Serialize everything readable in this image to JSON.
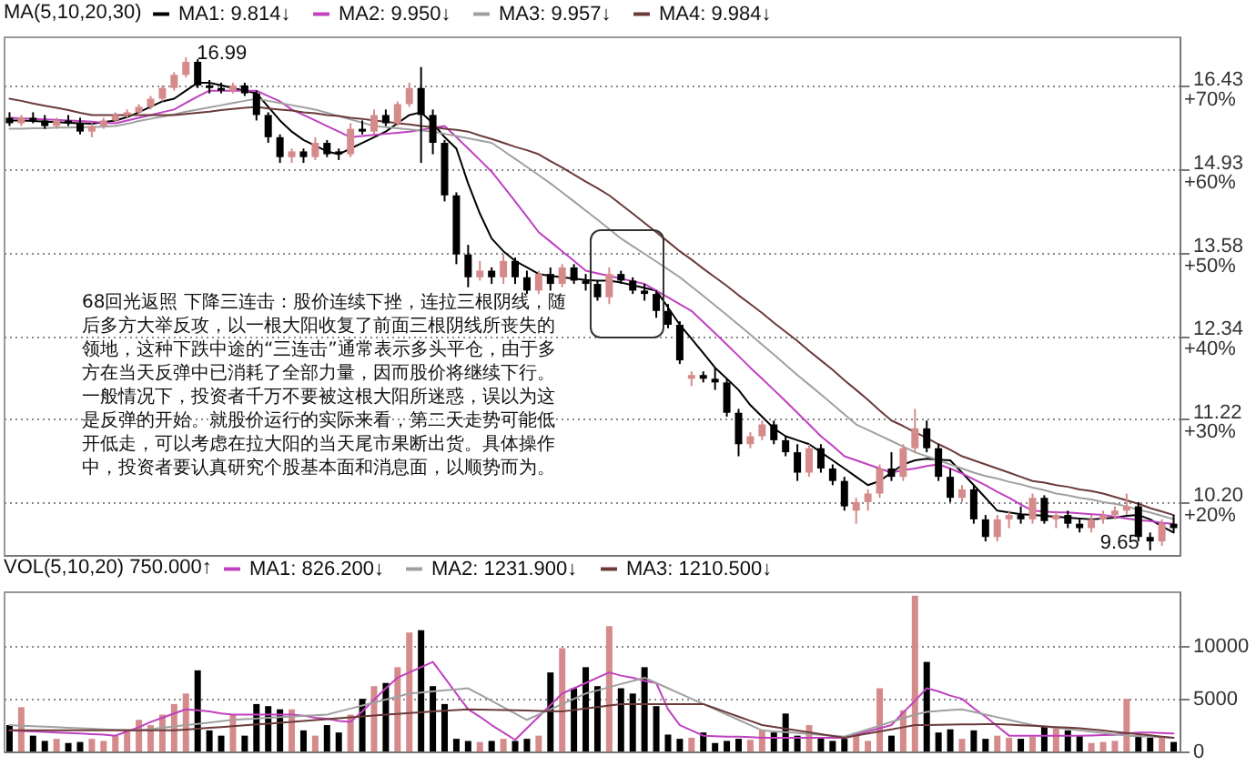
{
  "chart_data": [
    {
      "type": "candlestick",
      "legend_title": "MA(5,10,20,30)",
      "legend": "top left",
      "log": true,
      "grid": "y",
      "tick_labels": "y",
      "ylim": [
        9.6,
        17.4
      ],
      "yticks": [
        16.43,
        14.93,
        13.58,
        12.34,
        11.22,
        {
          "value": 10.2,
          "label": "10.20"
        }
      ],
      "y2lim": [
        13.6,
        76
      ],
      "y2ticks": [
        {
          "value": 70,
          "label": "+70%"
        },
        {
          "value": 60,
          "label": "+60%"
        },
        {
          "value": 50,
          "label": "+50%"
        },
        {
          "value": 40,
          "label": "+40%"
        },
        {
          "value": 30,
          "label": "+30%"
        },
        {
          "value": 20,
          "label": "+20%"
        }
      ],
      "categories": [
        null,
        null,
        null,
        null,
        null,
        null,
        null,
        null,
        null,
        null,
        null,
        null,
        null,
        null,
        null,
        null,
        null,
        null,
        null,
        null,
        null,
        null,
        null,
        null,
        null,
        null,
        null,
        null,
        null,
        null,
        null,
        null,
        null,
        null,
        null,
        null,
        null,
        null,
        null,
        null,
        null,
        null,
        null,
        null,
        null,
        null,
        null,
        null,
        null,
        null,
        null,
        null,
        null,
        null,
        null,
        null,
        null,
        null,
        null,
        null,
        null,
        null,
        null,
        null,
        null,
        null,
        null,
        null,
        null,
        null,
        null,
        null,
        null,
        null,
        null,
        null,
        null,
        null,
        null,
        null,
        null,
        null,
        null,
        null,
        null,
        null,
        null,
        null,
        null,
        null,
        null,
        null,
        null,
        null,
        null,
        null,
        null,
        null,
        null,
        null
      ],
      "ohlc": [
        [
          15.85,
          15.95,
          15.7,
          15.75
        ],
        [
          15.75,
          15.9,
          15.7,
          15.85
        ],
        [
          15.85,
          15.95,
          15.75,
          15.8
        ],
        [
          15.8,
          15.9,
          15.65,
          15.7
        ],
        [
          15.7,
          15.85,
          15.65,
          15.8
        ],
        [
          15.8,
          15.9,
          15.7,
          15.75
        ],
        [
          15.75,
          15.85,
          15.55,
          15.6
        ],
        [
          15.6,
          15.75,
          15.5,
          15.7
        ],
        [
          15.7,
          15.85,
          15.65,
          15.8
        ],
        [
          15.8,
          15.95,
          15.75,
          15.9
        ],
        [
          15.9,
          16.0,
          15.85,
          15.95
        ],
        [
          15.95,
          16.1,
          15.9,
          16.05
        ],
        [
          16.05,
          16.25,
          16.0,
          16.2
        ],
        [
          16.2,
          16.45,
          16.15,
          16.4
        ],
        [
          16.4,
          16.7,
          16.35,
          16.65
        ],
        [
          16.65,
          16.99,
          16.6,
          16.9
        ],
        [
          16.9,
          16.95,
          16.4,
          16.45
        ],
        [
          16.45,
          16.55,
          16.3,
          16.4
        ],
        [
          16.4,
          16.5,
          16.3,
          16.35
        ],
        [
          16.35,
          16.5,
          16.3,
          16.45
        ],
        [
          16.45,
          16.5,
          16.25,
          16.3
        ],
        [
          16.3,
          16.35,
          15.8,
          15.9
        ],
        [
          15.9,
          15.95,
          15.4,
          15.5
        ],
        [
          15.5,
          15.55,
          15.05,
          15.15
        ],
        [
          15.15,
          15.3,
          15.05,
          15.25
        ],
        [
          15.25,
          15.3,
          15.05,
          15.15
        ],
        [
          15.15,
          15.5,
          15.1,
          15.4
        ],
        [
          15.4,
          15.45,
          15.15,
          15.2
        ],
        [
          15.25,
          15.3,
          15.1,
          15.2
        ],
        [
          15.2,
          15.75,
          15.15,
          15.65
        ],
        [
          15.65,
          15.8,
          15.55,
          15.6
        ],
        [
          15.6,
          16.0,
          15.55,
          15.9
        ],
        [
          15.9,
          16.0,
          15.7,
          15.75
        ],
        [
          15.75,
          16.15,
          15.7,
          16.1
        ],
        [
          16.1,
          16.5,
          16.05,
          16.4
        ],
        [
          16.4,
          16.8,
          15.05,
          15.9
        ],
        [
          15.9,
          16.0,
          15.2,
          15.4
        ],
        [
          15.4,
          15.45,
          14.4,
          14.5
        ],
        [
          14.5,
          14.55,
          13.4,
          13.55
        ],
        [
          13.55,
          13.7,
          13.05,
          13.2
        ],
        [
          13.2,
          13.45,
          13.15,
          13.3
        ],
        [
          13.3,
          13.35,
          13.1,
          13.2
        ],
        [
          13.2,
          13.55,
          13.1,
          13.45
        ],
        [
          13.45,
          13.5,
          13.1,
          13.2
        ],
        [
          13.2,
          13.3,
          12.95,
          13.0
        ],
        [
          13.0,
          13.3,
          12.95,
          13.25
        ],
        [
          13.25,
          13.35,
          13.0,
          13.1
        ],
        [
          13.1,
          13.4,
          13.05,
          13.35
        ],
        [
          13.35,
          13.4,
          13.1,
          13.15
        ],
        [
          13.15,
          13.25,
          13.0,
          13.1
        ],
        [
          13.1,
          13.15,
          12.85,
          12.9
        ],
        [
          12.9,
          13.35,
          12.8,
          13.25
        ],
        [
          13.25,
          13.3,
          13.1,
          13.15
        ],
        [
          13.15,
          13.2,
          12.95,
          13.0
        ],
        [
          13.0,
          13.1,
          12.85,
          12.95
        ],
        [
          12.95,
          13.0,
          12.6,
          12.7
        ],
        [
          12.7,
          12.8,
          12.45,
          12.5
        ],
        [
          12.5,
          12.55,
          11.95,
          12.0
        ],
        [
          11.75,
          11.85,
          11.65,
          11.8
        ],
        [
          11.8,
          11.85,
          11.7,
          11.75
        ],
        [
          11.75,
          11.9,
          11.6,
          11.7
        ],
        [
          11.7,
          11.75,
          11.25,
          11.3
        ],
        [
          11.3,
          11.35,
          10.75,
          10.9
        ],
        [
          10.9,
          11.05,
          10.85,
          11.0
        ],
        [
          11.0,
          11.2,
          10.95,
          11.15
        ],
        [
          11.15,
          11.2,
          10.9,
          10.95
        ],
        [
          10.95,
          11.0,
          10.75,
          10.8
        ],
        [
          10.8,
          10.9,
          10.45,
          10.55
        ],
        [
          10.55,
          10.9,
          10.5,
          10.85
        ],
        [
          10.85,
          10.9,
          10.55,
          10.6
        ],
        [
          10.6,
          10.65,
          10.4,
          10.45
        ],
        [
          10.45,
          10.5,
          10.1,
          10.15
        ],
        [
          10.1,
          10.25,
          9.95,
          10.2
        ],
        [
          10.2,
          10.35,
          10.1,
          10.3
        ],
        [
          10.3,
          10.65,
          10.25,
          10.6
        ],
        [
          10.6,
          10.8,
          10.45,
          10.5
        ],
        [
          10.5,
          10.9,
          10.45,
          10.85
        ],
        [
          10.85,
          11.35,
          10.8,
          11.1
        ],
        [
          11.1,
          11.2,
          10.8,
          10.85
        ],
        [
          10.85,
          10.9,
          10.45,
          10.5
        ],
        [
          10.5,
          10.6,
          10.2,
          10.25
        ],
        [
          10.25,
          10.4,
          10.2,
          10.35
        ],
        [
          10.35,
          10.4,
          9.95,
          10.0
        ],
        [
          10.0,
          10.05,
          9.75,
          9.8
        ],
        [
          9.8,
          10.05,
          9.75,
          10.0
        ],
        [
          10.0,
          10.1,
          9.9,
          10.05
        ],
        [
          10.05,
          10.15,
          9.95,
          10.0
        ],
        [
          10.0,
          10.3,
          9.95,
          10.25
        ],
        [
          10.25,
          10.28,
          9.95,
          9.98
        ],
        [
          10.0,
          10.1,
          9.9,
          10.05
        ],
        [
          10.05,
          10.1,
          9.9,
          9.95
        ],
        [
          9.95,
          10.0,
          9.85,
          9.9
        ],
        [
          9.9,
          10.05,
          9.85,
          10.0
        ],
        [
          10.0,
          10.1,
          9.95,
          10.05
        ],
        [
          10.05,
          10.15,
          10.0,
          10.1
        ],
        [
          10.1,
          10.3,
          10.05,
          10.15
        ],
        [
          10.15,
          10.2,
          9.75,
          9.8
        ],
        [
          9.8,
          9.85,
          9.65,
          9.75
        ],
        [
          9.75,
          10.0,
          9.7,
          9.95
        ],
        [
          9.95,
          10.05,
          9.85,
          9.9
        ]
      ],
      "colors": [
        "#000000",
        "#d58b8b",
        "#000000",
        "#000000",
        "#d58b8b",
        "#000000",
        "#000000",
        "#d58b8b",
        "#d58b8b",
        "#d58b8b",
        "#d58b8b",
        "#d58b8b",
        "#d58b8b",
        "#d58b8b",
        "#d58b8b",
        "#d58b8b",
        "#000000",
        "#000000",
        "#000000",
        "#d58b8b",
        "#000000",
        "#000000",
        "#000000",
        "#000000",
        "#d58b8b",
        "#000000",
        "#d58b8b",
        "#000000",
        "#000000",
        "#d58b8b",
        "#000000",
        "#d58b8b",
        "#000000",
        "#d58b8b",
        "#d58b8b",
        "#000000",
        "#000000",
        "#000000",
        "#000000",
        "#000000",
        "#d58b8b",
        "#000000",
        "#d58b8b",
        "#000000",
        "#000000",
        "#d58b8b",
        "#000000",
        "#d58b8b",
        "#000000",
        "#000000",
        "#000000",
        "#d58b8b",
        "#000000",
        "#000000",
        "#000000",
        "#000000",
        "#000000",
        "#000000",
        "#d58b8b",
        "#000000",
        "#000000",
        "#000000",
        "#000000",
        "#d58b8b",
        "#d58b8b",
        "#000000",
        "#000000",
        "#000000",
        "#d58b8b",
        "#000000",
        "#000000",
        "#000000",
        "#d58b8b",
        "#d58b8b",
        "#d58b8b",
        "#000000",
        "#d58b8b",
        "#d58b8b",
        "#000000",
        "#000000",
        "#000000",
        "#d58b8b",
        "#000000",
        "#000000",
        "#d58b8b",
        "#d58b8b",
        "#000000",
        "#d58b8b",
        "#000000",
        "#d58b8b",
        "#000000",
        "#000000",
        "#d58b8b",
        "#d58b8b",
        "#d58b8b",
        "#d58b8b",
        "#000000",
        "#000000",
        "#d58b8b",
        "#000000"
      ],
      "series": [
        {
          "name": "MA1: 9.814↓",
          "type": "line",
          "color": "#000000",
          "values": [
            15.8,
            15.8,
            15.79,
            15.78,
            15.77,
            15.76,
            15.75,
            15.74,
            15.77,
            15.8,
            15.86,
            15.95,
            16.05,
            16.15,
            16.2,
            16.35,
            16.5,
            16.5,
            16.45,
            16.4,
            16.35,
            16.3,
            16.05,
            15.8,
            15.6,
            15.45,
            15.35,
            15.25,
            15.2,
            15.3,
            15.4,
            15.5,
            15.6,
            15.75,
            15.9,
            15.95,
            15.75,
            15.5,
            15.3,
            14.7,
            14.2,
            13.8,
            13.6,
            13.45,
            13.35,
            13.25,
            13.22,
            13.2,
            13.18,
            13.16,
            13.15,
            13.15,
            13.12,
            13.08,
            13.04,
            13.0,
            12.75,
            12.5,
            12.3,
            12.1,
            11.9,
            11.75,
            11.6,
            11.4,
            11.25,
            11.1,
            11.0,
            10.95,
            10.9,
            10.8,
            10.7,
            10.6,
            10.5,
            10.4,
            10.45,
            10.55,
            10.65,
            10.7,
            10.72,
            10.71,
            10.7,
            10.55,
            10.4,
            10.25,
            10.1,
            10.08,
            10.06,
            10.05,
            10.04,
            10.03,
            10.02,
            10.01,
            10.0,
            10.01,
            10.02,
            10.04,
            10.05,
            10.0,
            9.92,
            9.85
          ]
        },
        {
          "name": "MA2: 9.950↓",
          "type": "line",
          "color": "#c040c0",
          "values": [
            15.85,
            15.84,
            15.83,
            15.82,
            15.81,
            15.8,
            15.79,
            15.78,
            15.76,
            15.75,
            15.8,
            15.85,
            15.9,
            15.95,
            16.0,
            16.12,
            16.24,
            16.35,
            16.35,
            16.35,
            16.35,
            16.35,
            16.25,
            16.15,
            16.0,
            15.9,
            15.8,
            15.7,
            15.6,
            15.5,
            15.52,
            15.54,
            15.56,
            15.58,
            15.6,
            15.63,
            15.67,
            15.7,
            15.5,
            15.3,
            15.1,
            14.9,
            14.65,
            14.4,
            14.15,
            13.9,
            13.75,
            13.6,
            13.45,
            13.3,
            13.26,
            13.22,
            13.18,
            13.14,
            13.1,
            13.0,
            12.9,
            12.8,
            12.7,
            12.54,
            12.38,
            12.22,
            12.06,
            11.9,
            11.75,
            11.6,
            11.45,
            11.3,
            11.15,
            11.0,
            10.88,
            10.75,
            10.7,
            10.65,
            10.6,
            10.55,
            10.58,
            10.6,
            10.63,
            10.65,
            10.6,
            10.54,
            10.47,
            10.4,
            10.32,
            10.25,
            10.17,
            10.1,
            10.09,
            10.08,
            10.08,
            10.07,
            10.06,
            10.05,
            10.03,
            10.01,
            9.99,
            9.98,
            9.96,
            9.95
          ]
        },
        {
          "name": "MA3: 9.957↓",
          "type": "line",
          "color": "#a0a0a0",
          "values": [
            15.65,
            15.65,
            15.66,
            15.66,
            15.67,
            15.67,
            15.68,
            15.68,
            15.69,
            15.7,
            15.74,
            15.79,
            15.83,
            15.87,
            15.91,
            15.96,
            16.0,
            16.04,
            16.08,
            16.12,
            16.16,
            16.2,
            16.16,
            16.12,
            16.08,
            16.04,
            16.0,
            15.94,
            15.88,
            15.82,
            15.76,
            15.7,
            15.68,
            15.66,
            15.64,
            15.62,
            15.6,
            15.56,
            15.52,
            15.48,
            15.44,
            15.4,
            15.26,
            15.12,
            14.98,
            14.84,
            14.7,
            14.55,
            14.4,
            14.25,
            14.1,
            13.95,
            13.8,
            13.68,
            13.56,
            13.44,
            13.32,
            13.2,
            13.06,
            12.92,
            12.78,
            12.64,
            12.5,
            12.36,
            12.22,
            12.08,
            11.94,
            11.8,
            11.67,
            11.54,
            11.41,
            11.28,
            11.15,
            11.08,
            11.01,
            10.94,
            10.87,
            10.8,
            10.75,
            10.7,
            10.65,
            10.6,
            10.55,
            10.51,
            10.48,
            10.44,
            10.41,
            10.37,
            10.34,
            10.3,
            10.28,
            10.25,
            10.23,
            10.2,
            10.18,
            10.15,
            10.11,
            10.08,
            10.04,
            10.0
          ]
        },
        {
          "name": "MA4: 9.984↓",
          "type": "line",
          "color": "#6b3a3a",
          "values": [
            16.2,
            16.16,
            16.11,
            16.07,
            16.03,
            15.99,
            15.94,
            15.9,
            15.9,
            15.9,
            15.9,
            15.9,
            15.9,
            15.9,
            15.9,
            15.92,
            15.94,
            15.96,
            15.99,
            16.01,
            16.03,
            16.05,
            16.02,
            16.0,
            15.98,
            15.95,
            15.93,
            15.9,
            15.88,
            15.85,
            15.83,
            15.8,
            15.78,
            15.75,
            15.73,
            15.7,
            15.68,
            15.65,
            15.63,
            15.6,
            15.53,
            15.47,
            15.4,
            15.33,
            15.27,
            15.2,
            15.08,
            14.97,
            14.85,
            14.73,
            14.62,
            14.5,
            14.35,
            14.2,
            14.05,
            13.9,
            13.75,
            13.6,
            13.47,
            13.33,
            13.2,
            13.07,
            12.93,
            12.8,
            12.67,
            12.53,
            12.4,
            12.27,
            12.13,
            12.0,
            11.87,
            11.73,
            11.6,
            11.47,
            11.33,
            11.2,
            11.13,
            11.05,
            10.98,
            10.9,
            10.83,
            10.75,
            10.7,
            10.65,
            10.6,
            10.55,
            10.5,
            10.45,
            10.43,
            10.4,
            10.38,
            10.35,
            10.33,
            10.3,
            10.26,
            10.22,
            10.18,
            10.13,
            10.09,
            10.05
          ]
        }
      ],
      "annotations": [
        "16.99",
        "9.65",
        "68回光返照  下降三连击：股价连续下挫，连拉三根阴线，随后多方大举反攻，以一根大阳收复了前面三根阴线所丧失的领地，这种下跌中途的“三连击”通常表示多头平仓，由于多方在当天反弹中已消耗了全部力量，因而股价将继续下行。一般情况下，投资者千万不要被这根大阳所迷惑，误以为这是反弹的开始。就股价运行的实际来看，第二天走势可能低开低走，可以考虑在拉大阳的当天尾市果断出货。具体操作中，投资者要认真研究个股基本面和消息面，以顺势而为。"
      ]
    },
    {
      "type": "bar",
      "legend_title": "VOL(5,10,20) 750.000↑",
      "legend": "top left",
      "grid": "y",
      "tick_labels": "y",
      "ylim": [
        0,
        15200
      ],
      "yticks": [
        0,
        5000,
        10000
      ],
      "categories": [
        null,
        null,
        null,
        null,
        null,
        null,
        null,
        null,
        null,
        null,
        null,
        null,
        null,
        null,
        null,
        null,
        null,
        null,
        null,
        null,
        null,
        null,
        null,
        null,
        null,
        null,
        null,
        null,
        null,
        null,
        null,
        null,
        null,
        null,
        null,
        null,
        null,
        null,
        null,
        null,
        null,
        null,
        null,
        null,
        null,
        null,
        null,
        null,
        null,
        null,
        null,
        null,
        null,
        null,
        null,
        null,
        null,
        null,
        null,
        null,
        null,
        null,
        null,
        null,
        null,
        null,
        null,
        null,
        null,
        null,
        null,
        null,
        null,
        null,
        null,
        null,
        null,
        null,
        null,
        null,
        null,
        null,
        null,
        null,
        null,
        null,
        null,
        null,
        null,
        null,
        null,
        null,
        null,
        null,
        null,
        null,
        null,
        null,
        null,
        null
      ],
      "values": [
        2500,
        4200,
        1500,
        1000,
        1200,
        800,
        900,
        1200,
        1000,
        1500,
        2000,
        3000,
        2500,
        3500,
        4500,
        5500,
        7700,
        2000,
        1500,
        3500,
        1500,
        4500,
        4300,
        4000,
        4000,
        2000,
        1500,
        2500,
        1800,
        3500,
        5000,
        6200,
        6500,
        8000,
        11300,
        11500,
        6200,
        4500,
        1200,
        1000,
        900,
        1000,
        1200,
        1000,
        1200,
        1500,
        7500,
        9800,
        6000,
        8000,
        6200,
        11900,
        6000,
        5500,
        8000,
        4300,
        1600,
        1200,
        1300,
        1800,
        800,
        1000,
        1200,
        1100,
        2000,
        1800,
        3600,
        1500,
        2500,
        1300,
        1000,
        1200,
        1800,
        1000,
        6000,
        1500,
        3900,
        14800,
        8500,
        1800,
        2100,
        1200,
        2000,
        1200,
        1500,
        1300,
        1200,
        1400,
        2400,
        2300,
        2000,
        1500,
        800,
        900,
        1000,
        5000,
        1500,
        1300,
        1400,
        900
      ],
      "colors": [
        "#000000",
        "#d58b8b",
        "#000000",
        "#000000",
        "#d58b8b",
        "#000000",
        "#000000",
        "#d58b8b",
        "#d58b8b",
        "#d58b8b",
        "#d58b8b",
        "#d58b8b",
        "#d58b8b",
        "#d58b8b",
        "#d58b8b",
        "#d58b8b",
        "#000000",
        "#000000",
        "#000000",
        "#d58b8b",
        "#000000",
        "#000000",
        "#000000",
        "#000000",
        "#d58b8b",
        "#000000",
        "#d58b8b",
        "#000000",
        "#000000",
        "#d58b8b",
        "#000000",
        "#d58b8b",
        "#000000",
        "#d58b8b",
        "#d58b8b",
        "#000000",
        "#000000",
        "#000000",
        "#000000",
        "#000000",
        "#d58b8b",
        "#000000",
        "#d58b8b",
        "#000000",
        "#000000",
        "#d58b8b",
        "#000000",
        "#d58b8b",
        "#000000",
        "#000000",
        "#000000",
        "#d58b8b",
        "#000000",
        "#000000",
        "#000000",
        "#000000",
        "#000000",
        "#000000",
        "#d58b8b",
        "#000000",
        "#000000",
        "#000000",
        "#000000",
        "#d58b8b",
        "#d58b8b",
        "#000000",
        "#000000",
        "#000000",
        "#d58b8b",
        "#000000",
        "#000000",
        "#000000",
        "#d58b8b",
        "#d58b8b",
        "#d58b8b",
        "#000000",
        "#d58b8b",
        "#d58b8b",
        "#000000",
        "#000000",
        "#000000",
        "#d58b8b",
        "#000000",
        "#000000",
        "#d58b8b",
        "#d58b8b",
        "#000000",
        "#d58b8b",
        "#000000",
        "#d58b8b",
        "#000000",
        "#000000",
        "#d58b8b",
        "#d58b8b",
        "#d58b8b",
        "#d58b8b",
        "#000000",
        "#000000",
        "#d58b8b",
        "#000000"
      ],
      "series": [
        {
          "name": "MA1: 826.200↓",
          "type": "line",
          "color": "#c040c0",
          "values": [
            2000,
            1950,
            1900,
            1850,
            1800,
            1750,
            1700,
            1650,
            1600,
            1500,
            1900,
            2300,
            2800,
            3200,
            3600,
            4000,
            3900,
            3800,
            3600,
            3500,
            3500,
            3500,
            3500,
            3500,
            3500,
            3400,
            3200,
            3100,
            2900,
            2800,
            3800,
            4900,
            6000,
            7000,
            7500,
            8000,
            8500,
            7000,
            5500,
            4000,
            3300,
            2500,
            1800,
            1100,
            2200,
            3300,
            4400,
            5500,
            6000,
            6500,
            7000,
            7500,
            7200,
            7000,
            6700,
            6500,
            4000,
            2500,
            2000,
            1500,
            1450,
            1400,
            1400,
            1350,
            1300,
            1300,
            1300,
            1300,
            1300,
            1300,
            1300,
            1300,
            1600,
            1900,
            2200,
            2500,
            3700,
            4800,
            6000,
            5700,
            5300,
            5000,
            4100,
            3300,
            2400,
            1500,
            1500,
            1500,
            1500,
            1500,
            1500,
            1500,
            1520,
            1550,
            1580,
            1700,
            1800,
            1800,
            1750,
            1700
          ]
        },
        {
          "name": "MA2: 1231.900↓",
          "type": "line",
          "color": "#a0a0a0",
          "values": [
            2500,
            2450,
            2400,
            2350,
            2300,
            2250,
            2200,
            2150,
            2100,
            2050,
            2020,
            2000,
            2120,
            2250,
            2380,
            2500,
            2620,
            2750,
            2880,
            3000,
            3060,
            3120,
            3190,
            3250,
            3310,
            3380,
            3440,
            3500,
            3790,
            4070,
            4360,
            4640,
            4930,
            5210,
            5500,
            5600,
            5700,
            5800,
            5900,
            6000,
            5400,
            4800,
            4200,
            3600,
            3000,
            3500,
            4000,
            4500,
            5000,
            5500,
            5800,
            6100,
            6400,
            6700,
            7000,
            6500,
            6000,
            5500,
            5000,
            4500,
            4000,
            3500,
            3000,
            2500,
            2000,
            1910,
            1830,
            1740,
            1660,
            1570,
            1490,
            1400,
            1750,
            2100,
            2450,
            2800,
            3150,
            3500,
            3750,
            3850,
            3920,
            4000,
            3750,
            3500,
            3250,
            3000,
            2750,
            2500,
            2380,
            2250,
            2130,
            2000,
            1880,
            1750,
            1630,
            1500,
            1450,
            1400,
            1350,
            1300
          ]
        },
        {
          "name": "MA3: 1210.500↓",
          "type": "line",
          "color": "#6b3a3a",
          "values": [
            2000,
            2000,
            2000,
            2000,
            2000,
            2000,
            2000,
            2000,
            2000,
            2000,
            2000,
            2000,
            2000,
            2000,
            2000,
            2080,
            2160,
            2240,
            2320,
            2400,
            2480,
            2560,
            2640,
            2720,
            2800,
            2890,
            2980,
            3060,
            3150,
            3240,
            3330,
            3410,
            3500,
            3570,
            3640,
            3710,
            3790,
            3860,
            3930,
            4000,
            3980,
            3950,
            3930,
            3900,
            3880,
            3850,
            3830,
            3800,
            3940,
            4080,
            4220,
            4360,
            4500,
            4500,
            4500,
            4500,
            4500,
            4500,
            4500,
            4500,
            4100,
            3700,
            3300,
            2900,
            2500,
            2330,
            2160,
            1990,
            1810,
            1640,
            1470,
            1300,
            1500,
            1700,
            1900,
            2100,
            2300,
            2500,
            2510,
            2530,
            2540,
            2560,
            2570,
            2590,
            2600,
            2540,
            2490,
            2430,
            2370,
            2310,
            2260,
            2200,
            2090,
            1980,
            1860,
            1750,
            1640,
            1530,
            1410,
            1300
          ]
        }
      ]
    }
  ]
}
